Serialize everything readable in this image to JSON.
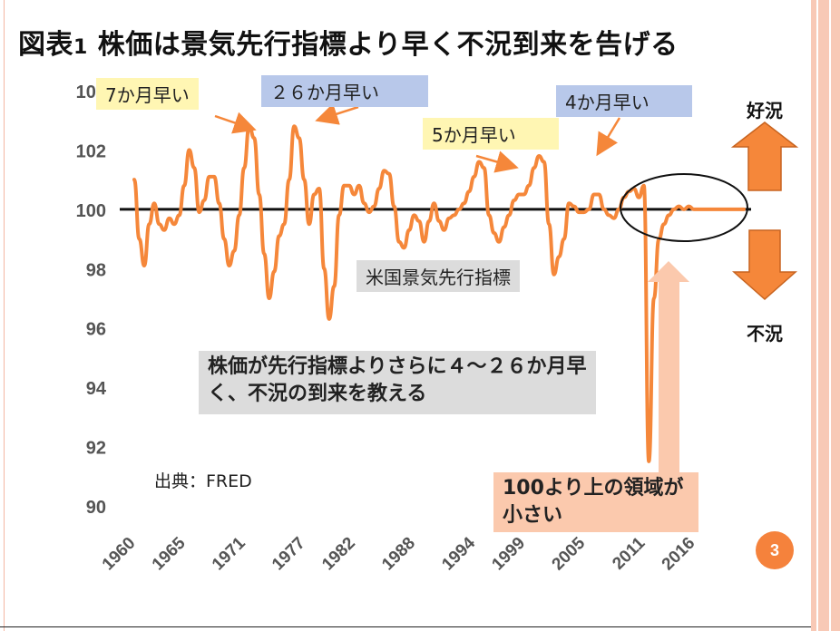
{
  "title": {
    "main": "図表",
    "num": "1",
    "rest": "株価は景気先行指標より早く不況到来を告げる"
  },
  "callouts": {
    "c1": "7か月早い",
    "c2": "２６か月早い",
    "c3": "5か月早い",
    "c4": "4か月早い",
    "series_label": "米国景気先行指標",
    "note": "株価が先行指標よりさらに４～２６か月早く、不況の到来を教える",
    "note2": "100より上の領域が小さい"
  },
  "source": "出典：FRED",
  "labels": {
    "good": "好況",
    "bad": "不況"
  },
  "page_number": "3",
  "colors": {
    "line": "#f5873a",
    "arrow_orange": "#f5873a",
    "arrow_peach": "#fbc9ad",
    "accent": "#f5823c"
  },
  "chart_data": {
    "type": "line",
    "title": "",
    "xlabel": "",
    "ylabel": "",
    "ylim": [
      90,
      104
    ],
    "yticks": [
      "90",
      "92",
      "94",
      "96",
      "98",
      "100",
      "102",
      "104"
    ],
    "xticks": [
      "1960",
      "1965",
      "1971",
      "1977",
      "1982",
      "1988",
      "1994",
      "1999",
      "2005",
      "2011",
      "2016"
    ],
    "reference_line": 100,
    "grid": false,
    "series": [
      {
        "name": "米国景気先行指標",
        "x": [
          1960.0,
          1960.5,
          1961.0,
          1961.5,
          1962.0,
          1962.5,
          1963.0,
          1963.5,
          1964.0,
          1964.5,
          1965.0,
          1965.5,
          1966.0,
          1966.5,
          1967.0,
          1967.5,
          1968.0,
          1968.5,
          1969.0,
          1969.5,
          1970.0,
          1970.5,
          1971.0,
          1971.5,
          1972.0,
          1972.5,
          1973.0,
          1973.5,
          1974.0,
          1974.5,
          1975.0,
          1975.5,
          1976.0,
          1976.5,
          1977.0,
          1977.5,
          1978.0,
          1978.5,
          1979.0,
          1979.5,
          1980.0,
          1980.5,
          1981.0,
          1981.5,
          1982.0,
          1982.5,
          1983.0,
          1983.5,
          1984.0,
          1984.5,
          1985.0,
          1985.5,
          1986.0,
          1986.5,
          1987.0,
          1987.5,
          1988.0,
          1988.5,
          1989.0,
          1989.5,
          1990.0,
          1990.5,
          1991.0,
          1991.5,
          1992.0,
          1992.5,
          1993.0,
          1993.5,
          1994.0,
          1994.5,
          1995.0,
          1995.5,
          1996.0,
          1996.5,
          1997.0,
          1997.5,
          1998.0,
          1998.5,
          1999.0,
          1999.5,
          2000.0,
          2000.5,
          2001.0,
          2001.5,
          2002.0,
          2002.5,
          2003.0,
          2003.5,
          2004.0,
          2004.5,
          2005.0,
          2005.5,
          2006.0,
          2006.5,
          2007.0,
          2007.5,
          2008.0,
          2008.5,
          2009.0,
          2009.5,
          2010.0,
          2010.5,
          2011.0,
          2011.5,
          2012.0,
          2012.5,
          2013.0,
          2013.5,
          2014.0,
          2014.5,
          2015.0,
          2015.5,
          2016.0,
          2016.5,
          2017.0,
          2017.5,
          2018.0,
          2018.5,
          2019.0,
          2019.5,
          2020.0,
          2020.5,
          2021.0
        ],
        "values": [
          101.0,
          99.0,
          98.1,
          99.5,
          100.2,
          99.5,
          99.3,
          99.7,
          99.5,
          99.8,
          100.8,
          102.0,
          101.4,
          99.9,
          100.3,
          101.1,
          101.1,
          100.2,
          99.0,
          98.1,
          98.6,
          99.8,
          101.4,
          102.8,
          102.4,
          100.5,
          98.5,
          97.0,
          97.9,
          99.1,
          99.5,
          101.0,
          102.8,
          102.4,
          101.0,
          99.5,
          100.5,
          100.7,
          98.0,
          96.3,
          97.4,
          99.8,
          100.8,
          100.8,
          100.5,
          100.8,
          100.2,
          99.9,
          100.1,
          100.7,
          101.3,
          101.2,
          100.1,
          98.9,
          98.7,
          99.3,
          99.8,
          99.6,
          98.9,
          99.6,
          100.2,
          99.6,
          99.3,
          99.7,
          99.8,
          100.0,
          100.2,
          100.6,
          101.1,
          101.6,
          101.4,
          99.8,
          99.2,
          98.9,
          99.4,
          99.8,
          100.3,
          100.5,
          100.5,
          100.8,
          101.4,
          101.8,
          101.6,
          99.5,
          97.8,
          98.4,
          99.0,
          100.2,
          100.1,
          99.9,
          99.9,
          100.0,
          100.5,
          100.5,
          100.0,
          99.8,
          99.7,
          100.0,
          100.4,
          100.6,
          100.7,
          100.4,
          100.8,
          91.5,
          97.0,
          99.0,
          99.5,
          99.8,
          100.0,
          100.1,
          100.0,
          100.1,
          100.0,
          100.0,
          100.0,
          100.0,
          100.0,
          100.0,
          100.0,
          100.0,
          100.0,
          100.0,
          100.0
        ]
      }
    ]
  }
}
